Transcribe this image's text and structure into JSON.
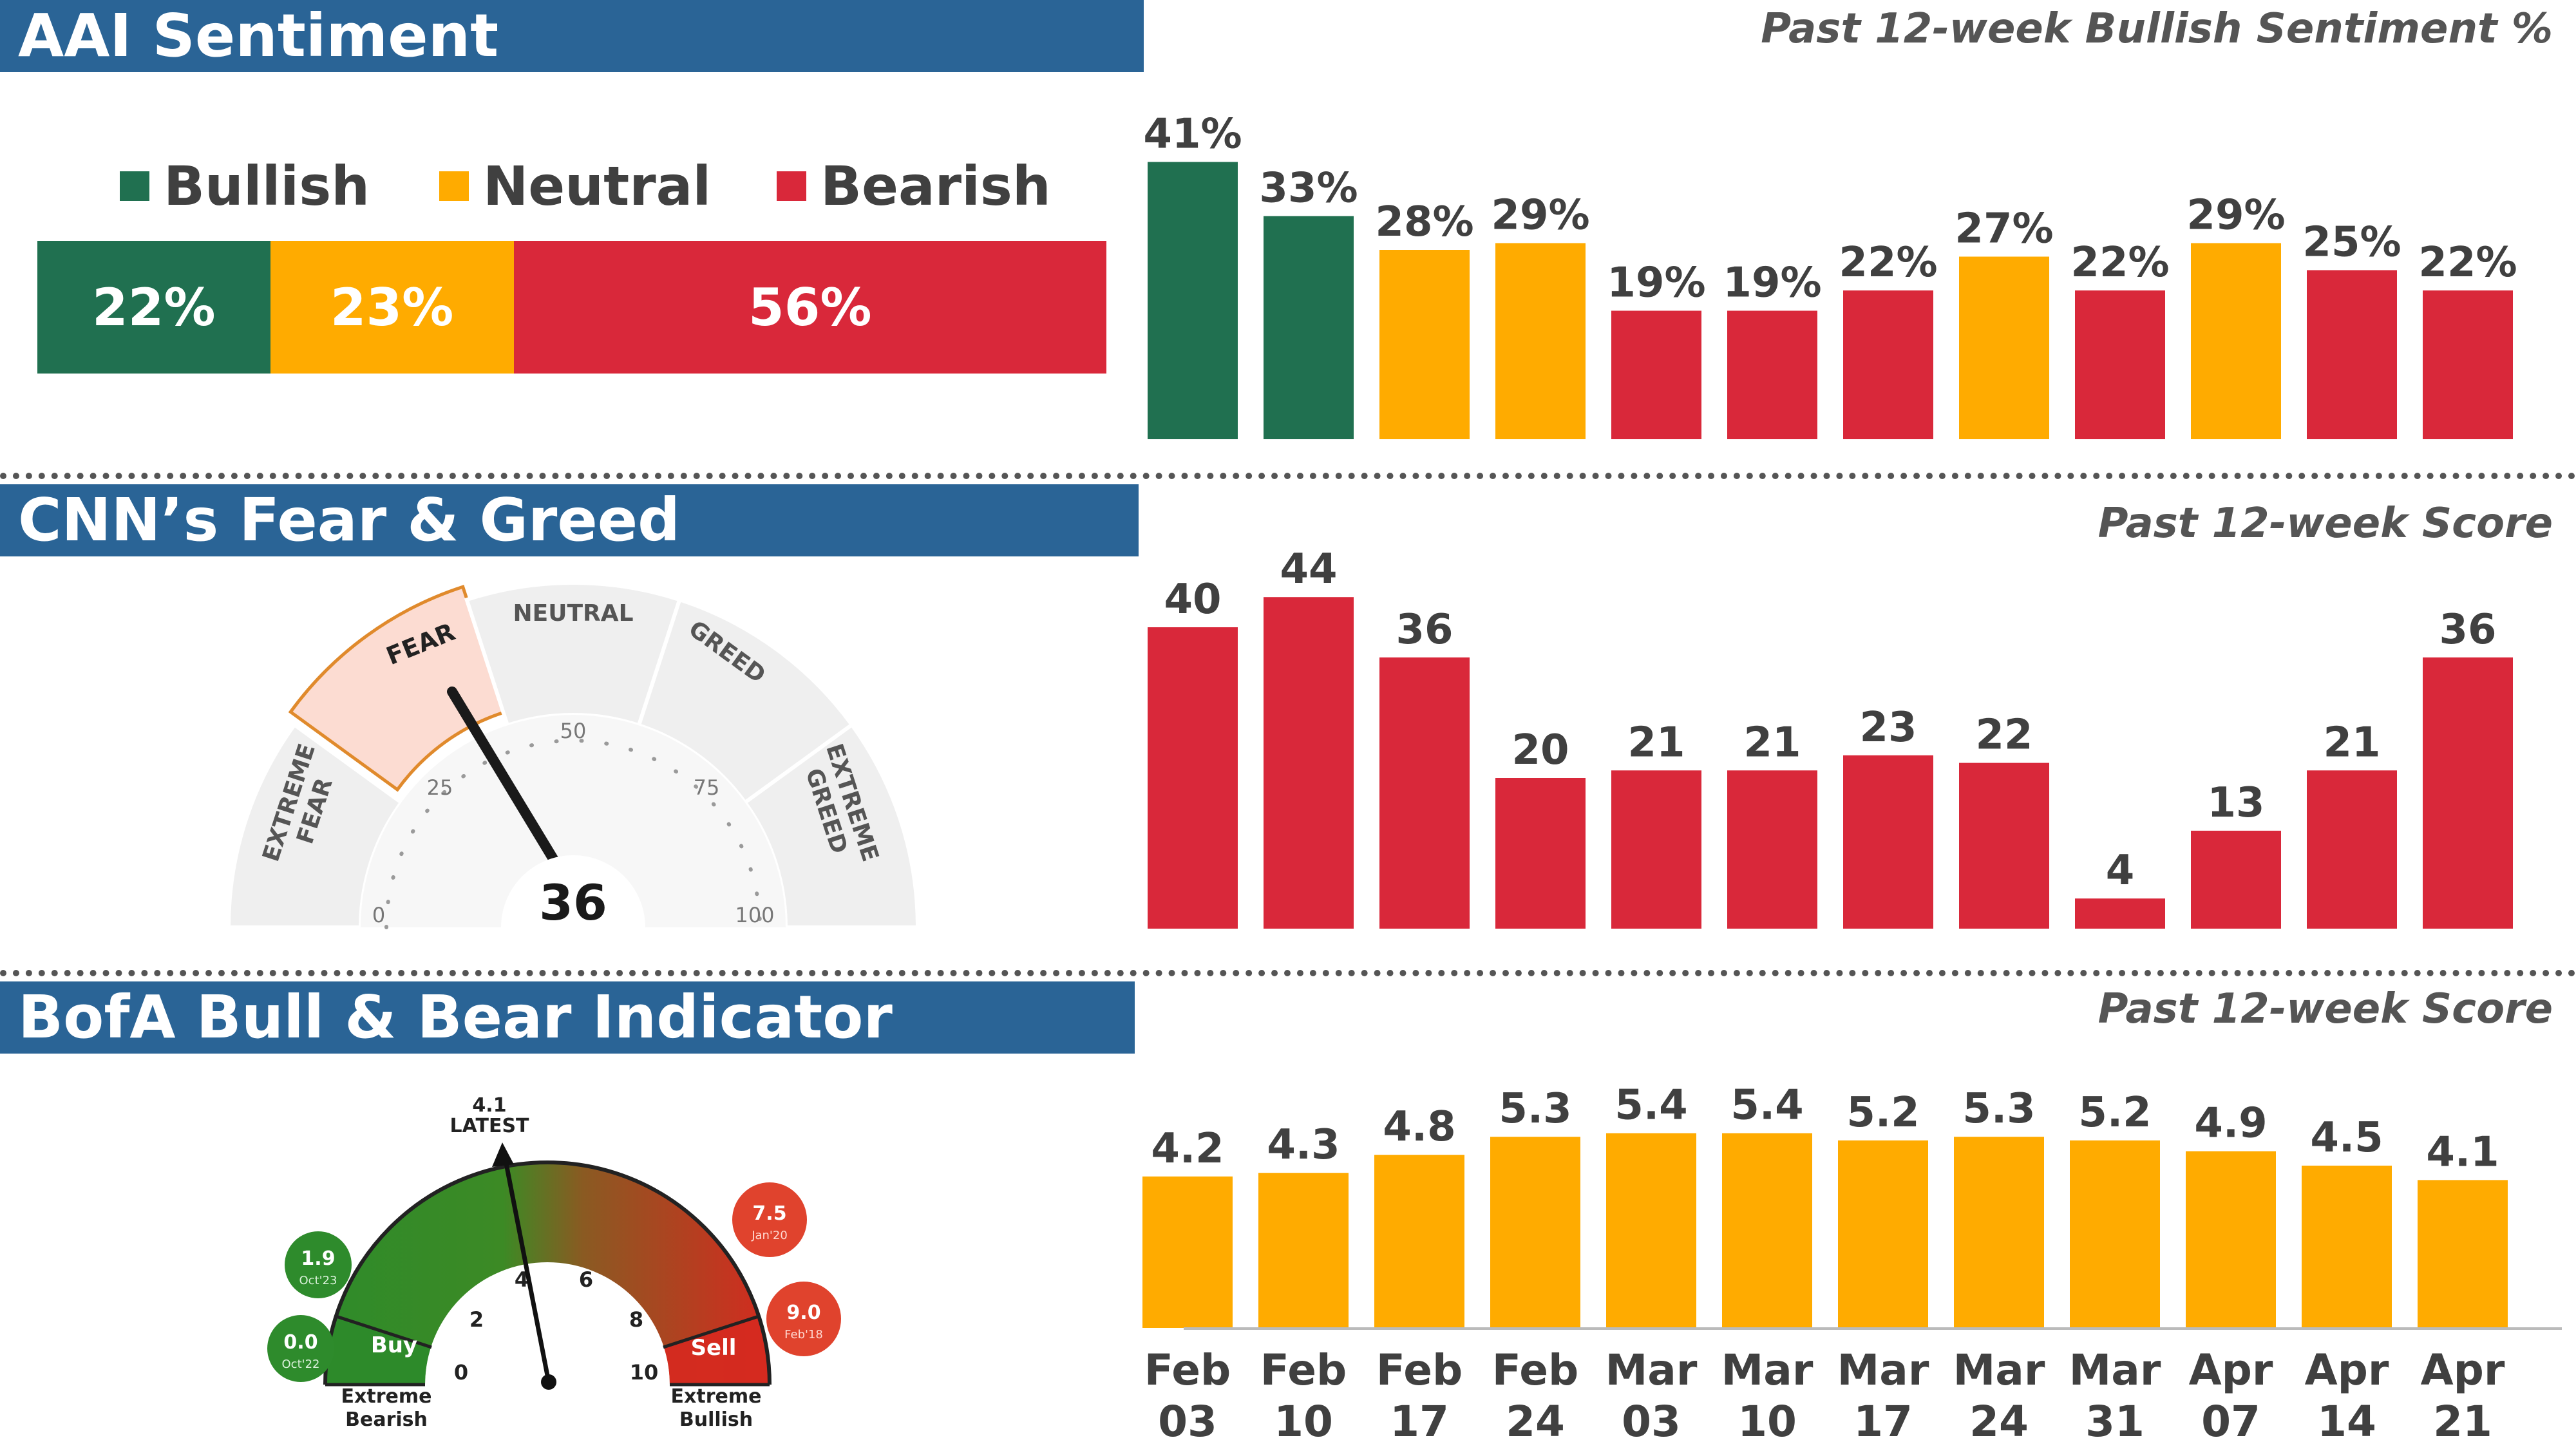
{
  "aai": {
    "title": "AAI Sentiment",
    "subtitle": "Past 12-week Bullish Sentiment %",
    "legend": {
      "bullish": "Bullish",
      "neutral": "Neutral",
      "bearish": "Bearish"
    },
    "breakdown": {
      "bullish": 22,
      "neutral": 23,
      "bearish": 56
    },
    "breakdown_labels": {
      "bullish": "22%",
      "neutral": "23%",
      "bearish": "56%"
    }
  },
  "cnn": {
    "title": "CNN’s Fear & Greed",
    "subtitle": "Past 12-week Score",
    "gauge": {
      "value": "36",
      "zones": [
        "EXTREME FEAR",
        "FEAR",
        "NEUTRAL",
        "GREED",
        "EXTREME GREED"
      ],
      "ticks": [
        "0",
        "25",
        "50",
        "75",
        "100"
      ]
    }
  },
  "bofa": {
    "title": "BofA Bull & Bear Indicator",
    "subtitle": "Past 12-week Score",
    "gauge": {
      "latest_value": "4.1",
      "latest_label": "LATEST",
      "ticks": [
        "0",
        "2",
        "4",
        "6",
        "8",
        "10"
      ],
      "buy_label": "Buy",
      "sell_label": "Sell",
      "left_end": "Extreme Bearish",
      "right_end": "Extreme Bullish",
      "bubbles": [
        {
          "value": "1.9",
          "date": "Oct'23"
        },
        {
          "value": "0.0",
          "date": "Oct'22"
        },
        {
          "value": "7.5",
          "date": "Jan'20"
        },
        {
          "value": "9.0",
          "date": "Feb'18"
        }
      ]
    }
  },
  "weeks": [
    [
      "Feb",
      "03"
    ],
    [
      "Feb",
      "10"
    ],
    [
      "Feb",
      "17"
    ],
    [
      "Feb",
      "24"
    ],
    [
      "Mar",
      "03"
    ],
    [
      "Mar",
      "10"
    ],
    [
      "Mar",
      "17"
    ],
    [
      "Mar",
      "24"
    ],
    [
      "Mar",
      "31"
    ],
    [
      "Apr",
      "07"
    ],
    [
      "Apr",
      "14"
    ],
    [
      "Apr",
      "21"
    ]
  ],
  "colors": {
    "bullish": "#207050",
    "neutral": "#ffab00",
    "bearish": "#d9283a",
    "banner": "#2a6496"
  },
  "chart_data": [
    {
      "type": "bar",
      "title": "Past 12-week Bullish Sentiment %",
      "categories": [
        "Feb 03",
        "Feb 10",
        "Feb 17",
        "Feb 24",
        "Mar 03",
        "Mar 10",
        "Mar 17",
        "Mar 24",
        "Mar 31",
        "Apr 07",
        "Apr 14",
        "Apr 21"
      ],
      "values": [
        41,
        33,
        28,
        29,
        19,
        19,
        22,
        27,
        22,
        29,
        25,
        22
      ],
      "labels": [
        "41%",
        "33%",
        "28%",
        "29%",
        "19%",
        "19%",
        "22%",
        "27%",
        "22%",
        "29%",
        "25%",
        "22%"
      ],
      "bar_classes": [
        "bullish",
        "bullish",
        "neutral",
        "neutral",
        "bearish",
        "bearish",
        "bearish",
        "neutral",
        "bearish",
        "neutral",
        "bearish",
        "bearish"
      ]
    },
    {
      "type": "bar",
      "title": "Past 12-week Score",
      "categories": [
        "Feb 03",
        "Feb 10",
        "Feb 17",
        "Feb 24",
        "Mar 03",
        "Mar 10",
        "Mar 17",
        "Mar 24",
        "Mar 31",
        "Apr 07",
        "Apr 14",
        "Apr 21"
      ],
      "values": [
        40,
        44,
        36,
        20,
        21,
        21,
        23,
        22,
        4,
        13,
        21,
        36
      ],
      "labels": [
        "40",
        "44",
        "36",
        "20",
        "21",
        "21",
        "23",
        "22",
        "4",
        "13",
        "21",
        "36"
      ],
      "bar_classes": [
        "bearish",
        "bearish",
        "bearish",
        "bearish",
        "bearish",
        "bearish",
        "bearish",
        "bearish",
        "bearish",
        "bearish",
        "bearish",
        "bearish"
      ]
    },
    {
      "type": "bar",
      "title": "Past 12-week Score",
      "categories": [
        "Feb 03",
        "Feb 10",
        "Feb 17",
        "Feb 24",
        "Mar 03",
        "Mar 10",
        "Mar 17",
        "Mar 24",
        "Mar 31",
        "Apr 07",
        "Apr 14",
        "Apr 21"
      ],
      "values": [
        4.2,
        4.3,
        4.8,
        5.3,
        5.4,
        5.4,
        5.2,
        5.3,
        5.2,
        4.9,
        4.5,
        4.1
      ],
      "labels": [
        "4.2",
        "4.3",
        "4.8",
        "5.3",
        "5.4",
        "5.4",
        "5.2",
        "5.3",
        "5.2",
        "4.9",
        "4.5",
        "4.1"
      ],
      "bar_classes": [
        "neutral",
        "neutral",
        "neutral",
        "neutral",
        "neutral",
        "neutral",
        "neutral",
        "neutral",
        "neutral",
        "neutral",
        "neutral",
        "neutral"
      ]
    }
  ]
}
